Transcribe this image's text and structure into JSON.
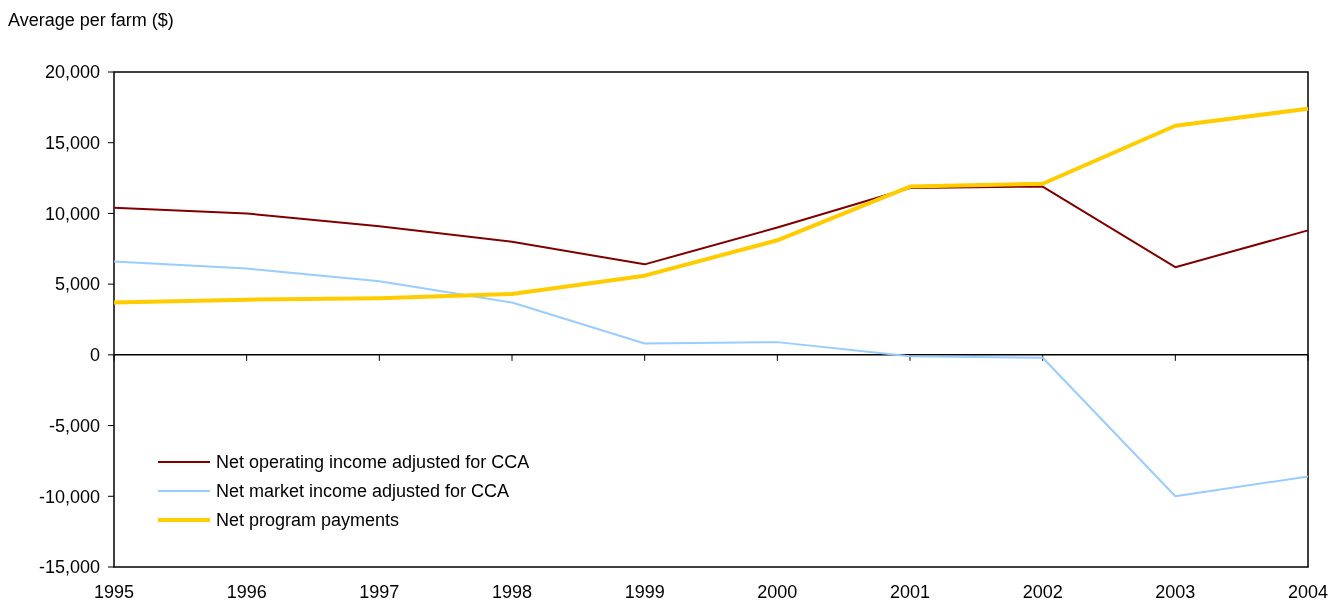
{
  "chart_data": {
    "type": "line",
    "ylabel": "Average per farm ($)",
    "x": [
      1995,
      1996,
      1997,
      1998,
      1999,
      2000,
      2001,
      2002,
      2003,
      2004
    ],
    "xlim": [
      1995,
      2004
    ],
    "xticks": [
      1995,
      1996,
      1997,
      1998,
      1999,
      2000,
      2001,
      2002,
      2003,
      2004
    ],
    "ylim": [
      -15000,
      20000
    ],
    "yticks": [
      {
        "value": -15000,
        "label": "-15,000"
      },
      {
        "value": -10000,
        "label": "-10,000"
      },
      {
        "value": -5000,
        "label": "-5,000"
      },
      0,
      {
        "value": 5000,
        "label": "5,000"
      },
      {
        "value": 10000,
        "label": "10,000"
      },
      {
        "value": 15000,
        "label": "15,000"
      },
      {
        "value": 20000,
        "label": "20,000"
      }
    ],
    "series": [
      {
        "name": "Net operating income adjusted for CCA",
        "color": "#800000",
        "values": [
          10400,
          10000,
          9100,
          8000,
          6400,
          9000,
          11800,
          11900,
          6200,
          8800
        ]
      },
      {
        "name": "Net market income adjusted for CCA",
        "color": "#99ccff",
        "values": [
          6600,
          6100,
          5200,
          3700,
          800,
          900,
          -100,
          -200,
          -10000,
          -8600
        ]
      },
      {
        "name": "Net program payments",
        "color": "#ffcc00",
        "values": [
          3700,
          3900,
          4000,
          4300,
          5600,
          8100,
          11900,
          12100,
          16200,
          17400
        ]
      }
    ],
    "legend": "bottom left",
    "line_style": "solid"
  }
}
